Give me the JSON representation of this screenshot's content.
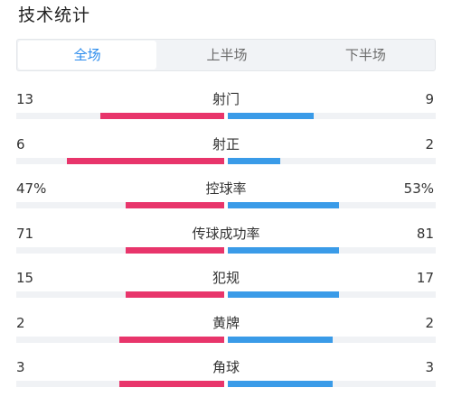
{
  "title": "技术统计",
  "tabs": [
    {
      "label": "全场",
      "active": true
    },
    {
      "label": "上半场",
      "active": false
    },
    {
      "label": "下半场",
      "active": false
    }
  ],
  "colors": {
    "home": "#e8356b",
    "away": "#3a9be8",
    "active_tab": "#2b8bec"
  },
  "stats": [
    {
      "label": "射门",
      "home": "13",
      "away": "9",
      "home_share": 0.59,
      "away_share": 0.41
    },
    {
      "label": "射正",
      "home": "6",
      "away": "2",
      "home_share": 0.75,
      "away_share": 0.25
    },
    {
      "label": "控球率",
      "home": "47%",
      "away": "53%",
      "home_share": 0.47,
      "away_share": 0.53
    },
    {
      "label": "传球成功率",
      "home": "71",
      "away": "81",
      "home_share": 0.47,
      "away_share": 0.53
    },
    {
      "label": "犯规",
      "home": "15",
      "away": "17",
      "home_share": 0.47,
      "away_share": 0.53
    },
    {
      "label": "黄牌",
      "home": "2",
      "away": "2",
      "home_share": 0.5,
      "away_share": 0.5
    },
    {
      "label": "角球",
      "home": "3",
      "away": "3",
      "home_share": 0.5,
      "away_share": 0.5
    }
  ]
}
